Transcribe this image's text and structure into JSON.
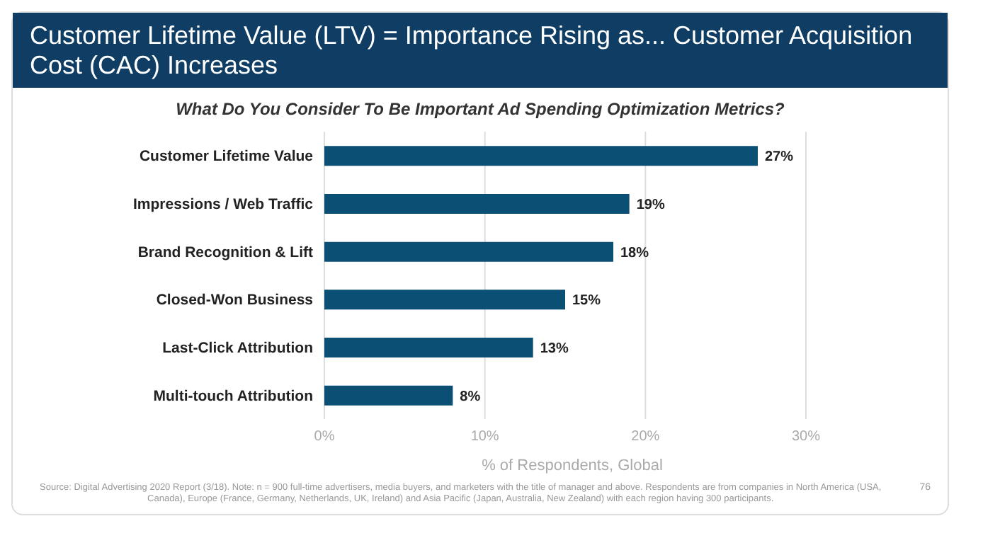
{
  "chart_data": {
    "type": "bar",
    "orientation": "horizontal",
    "title": "Customer Lifetime Value (LTV) = Importance Rising as... Customer Acquisition Cost (CAC) Increases",
    "subtitle": "What Do You Consider To Be Important Ad Spending Optimization Metrics?",
    "xlabel": "% of Respondents, Global",
    "categories": [
      "Customer Lifetime Value",
      "Impressions / Web Traffic",
      "Brand Recognition & Lift",
      "Closed-Won Business",
      "Last-Click Attribution",
      "Multi-touch Attribution"
    ],
    "values": [
      27,
      19,
      18,
      15,
      13,
      8
    ],
    "value_labels": [
      "27%",
      "19%",
      "18%",
      "15%",
      "13%",
      "8%"
    ],
    "color": "#0b4f75",
    "xlim": [
      0,
      30
    ],
    "xticks": [
      {
        "value": 0,
        "label": "0%"
      },
      {
        "value": 10,
        "label": "10%"
      },
      {
        "value": 20,
        "label": "20%"
      },
      {
        "value": 30,
        "label": "30%"
      }
    ],
    "grid": "x",
    "annotations": [
      "Source: Digital Advertising 2020 Report (3/18). Note: n = 900 full-time advertisers, media buyers, and marketers with the title of manager and above. Respondents are from companies in North America (USA, Canada), Europe (France, Germany, Netherlands, UK, Ireland) and Asia Pacific (Japan, Australia, New Zealand) with each region having 300 participants.",
      "76"
    ]
  }
}
